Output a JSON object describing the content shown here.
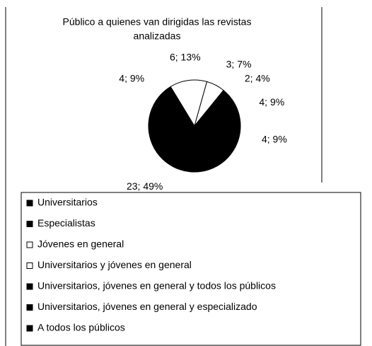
{
  "chart_data": {
    "type": "pie",
    "title": [
      "Público a quienes van dirigidas las revistas",
      "analizadas"
    ],
    "categories": [
      "Universitarios",
      "Especialistas",
      "Jóvenes en general",
      "Universitarios y jóvenes en general",
      "Universitarios, jóvenes en general y todos los públicos",
      "Universitarios, jóvenes en general y especializado",
      "A todos los públicos"
    ],
    "values": [
      23,
      4,
      6,
      3,
      2,
      4,
      4
    ],
    "value_labels": [
      "23; 49%",
      "4; 9%",
      "6; 13%",
      "3; 7%",
      "2; 4%",
      "4; 9%",
      "4; 9%"
    ],
    "colors": [
      "#000000",
      "#000000",
      "#ffffff",
      "#ffffff",
      "#000000",
      "#000000",
      "#000000"
    ],
    "legend": "bottom"
  }
}
